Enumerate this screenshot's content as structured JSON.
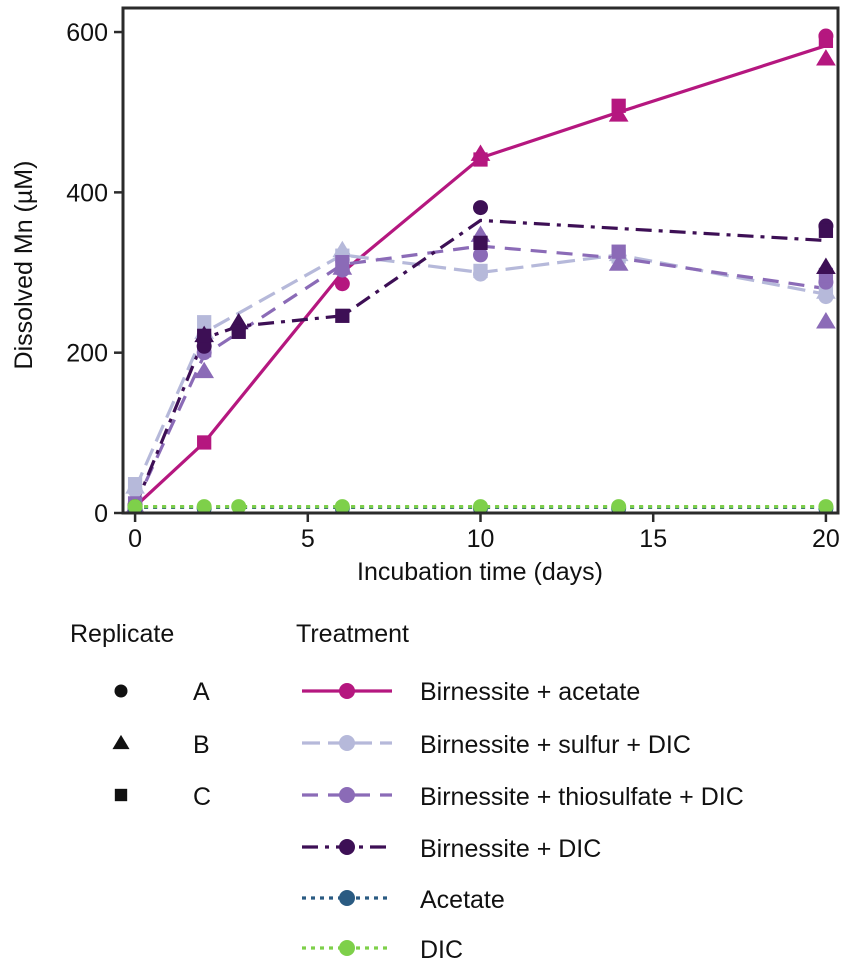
{
  "chart_data": {
    "type": "line",
    "title": "",
    "xlabel": "Incubation time (days)",
    "ylabel": "Dissolved Mn (µM)",
    "xlim": [
      -0.35,
      20.35
    ],
    "ylim": [
      0,
      630
    ],
    "xticks": [
      0,
      5,
      10,
      15,
      20
    ],
    "yticks": [
      0,
      200,
      400,
      600
    ],
    "xtick_labels": [
      "0",
      "5",
      "10",
      "15",
      "20"
    ],
    "ytick_labels": [
      "0",
      "200",
      "400",
      "600"
    ],
    "grid": false,
    "series": [
      {
        "name": "Birnessite + acetate",
        "color": "#b5177f",
        "dash": "solid",
        "mean": {
          "x": [
            0,
            2,
            6,
            10,
            14,
            20
          ],
          "y": [
            8,
            88,
            300,
            443,
            500,
            583
          ]
        },
        "replicates": {
          "A": {
            "x": [
              0,
              6,
              20
            ],
            "y": [
              10,
              286,
              595
            ]
          },
          "B": {
            "x": [
              0,
              10,
              14,
              20
            ],
            "y": [
              8,
              448,
              497,
              567
            ]
          },
          "C": {
            "x": [
              0,
              2,
              10,
              14,
              20
            ],
            "y": [
              6,
              88,
              441,
              508,
              589
            ]
          }
        }
      },
      {
        "name": "Birnessite + sulfur + DIC",
        "color": "#b6b9da",
        "dash": "long-dash",
        "mean": {
          "x": [
            0,
            2,
            6,
            10,
            14,
            20
          ],
          "y": [
            30,
            225,
            322,
            300,
            322,
            273
          ]
        },
        "replicates": {
          "A": {
            "x": [
              0,
              2,
              6,
              10,
              20
            ],
            "y": [
              28,
              222,
              316,
              298,
              270
            ]
          },
          "B": {
            "x": [
              0,
              2,
              6,
              14,
              20
            ],
            "y": [
              33,
              226,
              328,
              323,
              276
            ]
          },
          "C": {
            "x": [
              0,
              2,
              6,
              10,
              14,
              20
            ],
            "y": [
              36,
              238,
              321,
              302,
              320,
              279
            ]
          }
        }
      },
      {
        "name": "Birnessite + thiosulfate + DIC",
        "color": "#8b6bb7",
        "dash": "dash",
        "mean": {
          "x": [
            0,
            2,
            6,
            10,
            14,
            20
          ],
          "y": [
            10,
            197,
            310,
            333,
            318,
            280
          ]
        },
        "replicates": {
          "A": {
            "x": [
              0,
              2,
              6,
              10,
              20
            ],
            "y": [
              10,
              200,
              303,
              322,
              288
            ]
          },
          "B": {
            "x": [
              0,
              2,
              6,
              10,
              14,
              20
            ],
            "y": [
              8,
              177,
              306,
              347,
              311,
              239
            ]
          },
          "C": {
            "x": [
              0,
              2,
              6,
              14,
              20
            ],
            "y": [
              12,
              203,
              313,
              326,
              297
            ]
          }
        }
      },
      {
        "name": "Birnessite + DIC",
        "color": "#3d0f55",
        "dash": "dash-dot",
        "mean": {
          "x": [
            0,
            2,
            3,
            6,
            10,
            20
          ],
          "y": [
            8,
            218,
            233,
            246,
            365,
            340
          ]
        },
        "replicates": {
          "A": {
            "x": [
              0,
              2,
              10,
              20
            ],
            "y": [
              8,
              208,
              381,
              358
            ]
          },
          "B": {
            "x": [
              2,
              3,
              20
            ],
            "y": [
              222,
              238,
              307
            ]
          },
          "C": {
            "x": [
              2,
              3,
              6,
              10,
              20
            ],
            "y": [
              221,
              226,
              246,
              337,
              352
            ]
          }
        }
      },
      {
        "name": "Acetate",
        "color": "#2a5b82",
        "dash": "dotted",
        "mean": {
          "x": [
            0,
            2,
            3,
            6,
            10,
            14,
            20
          ],
          "y": [
            7,
            7,
            7,
            7,
            7,
            7,
            7
          ]
        },
        "replicates": {
          "A": {
            "x": [
              0,
              2,
              6,
              10,
              14,
              20
            ],
            "y": [
              6,
              6,
              6,
              6,
              6,
              6
            ]
          },
          "B": {
            "x": [],
            "y": []
          },
          "C": {
            "x": [],
            "y": []
          }
        }
      },
      {
        "name": "DIC",
        "color": "#7ed04a",
        "dash": "dotted",
        "mean": {
          "x": [
            0,
            2,
            3,
            6,
            10,
            14,
            20
          ],
          "y": [
            8,
            8,
            8,
            8,
            8,
            8,
            8
          ]
        },
        "replicates": {
          "A": {
            "x": [
              0,
              2,
              3,
              6,
              10,
              14,
              20
            ],
            "y": [
              8,
              8,
              8,
              8,
              8,
              8,
              8
            ]
          },
          "B": {
            "x": [],
            "y": []
          },
          "C": {
            "x": [],
            "y": []
          }
        }
      }
    ],
    "legend": {
      "replicate_title": "Replicate",
      "replicate_entries": [
        {
          "label": "A",
          "marker": "circle"
        },
        {
          "label": "B",
          "marker": "triangle"
        },
        {
          "label": "C",
          "marker": "square"
        }
      ],
      "treatment_title": "Treatment",
      "placement": "below"
    }
  }
}
